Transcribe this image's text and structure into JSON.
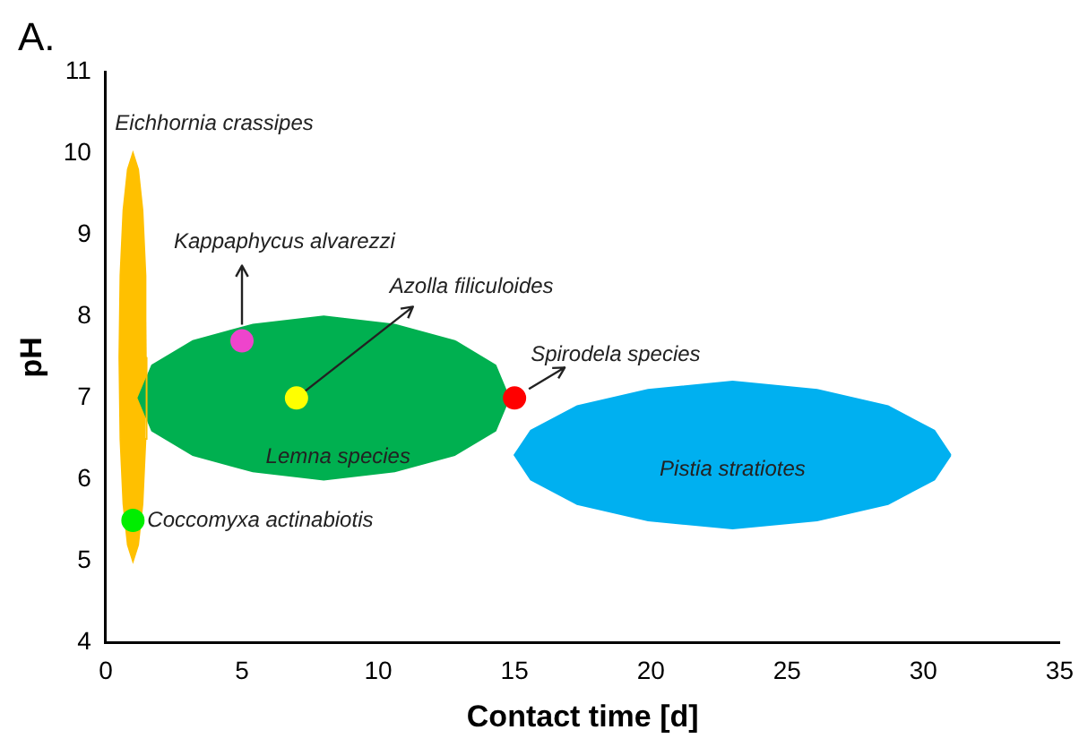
{
  "chart_data": {
    "type": "scatter",
    "xlabel": "Contact time [d]",
    "ylabel": "pH",
    "annotations": [
      "A."
    ],
    "xlim": [
      0,
      35
    ],
    "xticks": [
      0,
      5,
      10,
      15,
      20,
      25,
      30,
      35
    ],
    "ylim": [
      4,
      11
    ],
    "yticks": [
      4,
      5,
      6,
      7,
      8,
      9,
      10,
      11
    ],
    "grid": false,
    "legend": false,
    "marker": "circle",
    "series": [
      {
        "name": "Eichhornia crassipes",
        "type": "area",
        "marker": "none",
        "color": "#ffc000",
        "x": [
          1.5,
          1.46,
          1.35,
          1.19,
          1,
          0.81,
          0.65,
          0.54,
          0.5,
          0.54,
          0.65,
          0.81,
          1,
          1.19,
          1.35,
          1.46,
          1.5
        ],
        "values": [
          7.5,
          8.5,
          9.3,
          9.8,
          10,
          9.8,
          9.3,
          8.5,
          7.5,
          6.5,
          5.7,
          5.2,
          5,
          5.2,
          5.7,
          6.5,
          7.5
        ]
      },
      {
        "name": "Lemna species",
        "type": "area",
        "marker": "none",
        "color": "#00b050",
        "x": [
          14.8,
          14.3,
          12.8,
          10.6,
          8,
          5.4,
          3.2,
          1.7,
          1.2,
          1.7,
          3.2,
          5.4,
          8,
          10.6,
          12.8,
          14.3,
          14.8
        ],
        "values": [
          7,
          7.4,
          7.7,
          7.9,
          8,
          7.9,
          7.7,
          7.4,
          7,
          6.6,
          6.3,
          6.1,
          6,
          6.1,
          6.3,
          6.6,
          7
        ]
      },
      {
        "name": "Pistia stratiotes",
        "type": "area",
        "marker": "none",
        "color": "#00b0f0",
        "x": [
          31,
          30.4,
          28.7,
          26.1,
          23,
          19.9,
          17.3,
          15.6,
          15,
          15.6,
          17.3,
          19.9,
          23,
          26.1,
          28.7,
          30.4,
          31
        ],
        "values": [
          6.3,
          6.6,
          6.9,
          7.1,
          7.2,
          7.1,
          6.9,
          6.6,
          6.3,
          6,
          5.7,
          5.5,
          5.4,
          5.5,
          5.7,
          6,
          6.3
        ]
      },
      {
        "name": "Kappaphycus alvarezzi",
        "color": "#ee44cc",
        "x": [
          5
        ],
        "values": [
          7.7
        ]
      },
      {
        "name": "Azolla filiculoides",
        "color": "#ffff00",
        "x": [
          7
        ],
        "values": [
          7
        ]
      },
      {
        "name": "Spirodela species",
        "color": "#ff0000",
        "x": [
          15
        ],
        "values": [
          7
        ]
      },
      {
        "name": "Coccomyxa actinabiotis",
        "color": "#00ee00",
        "x": [
          1
        ],
        "values": [
          5.5
        ]
      }
    ]
  }
}
